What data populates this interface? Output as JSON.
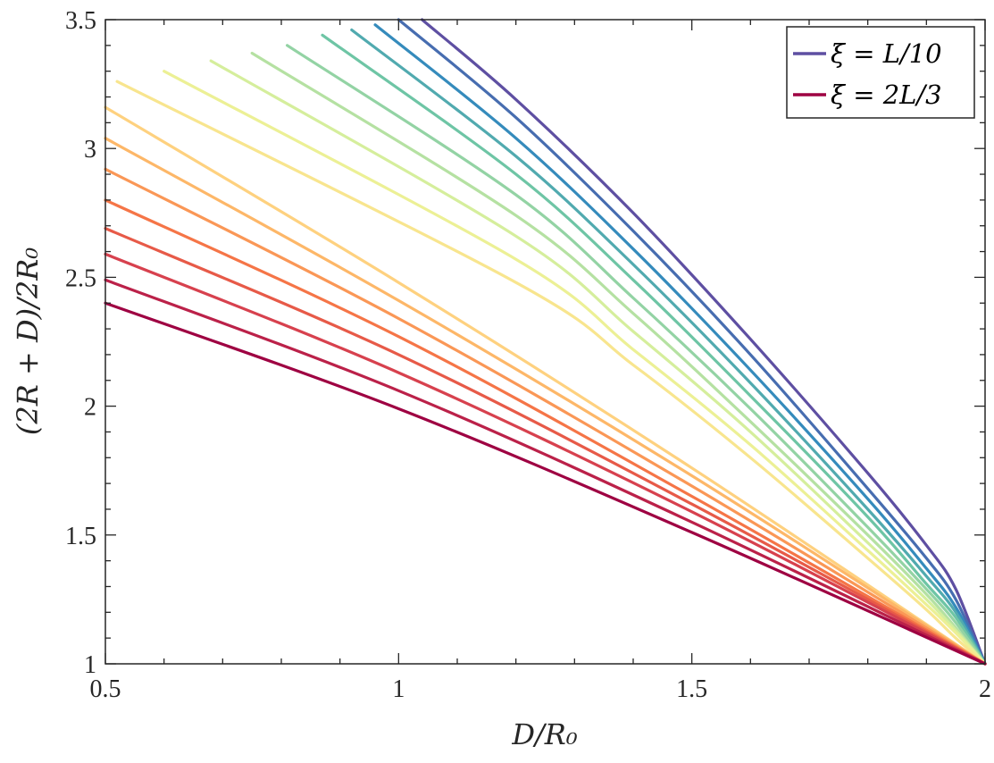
{
  "chart_data": {
    "type": "line",
    "xlabel": "D/R₀",
    "ylabel": "(2R + D)/2R₀",
    "xlim": [
      0.5,
      2
    ],
    "ylim": [
      1,
      3.5
    ],
    "xticks": [
      {
        "value": 0.5,
        "label": "0.5"
      },
      {
        "value": 1,
        "label": "1"
      },
      {
        "value": 1.5,
        "label": "1.5"
      },
      {
        "value": 2,
        "label": "2"
      }
    ],
    "yticks": [
      {
        "value": 1,
        "label": "1"
      },
      {
        "value": 1.5,
        "label": "1.5"
      },
      {
        "value": 2,
        "label": "2"
      },
      {
        "value": 2.5,
        "label": "2.5"
      },
      {
        "value": 3,
        "label": "3"
      },
      {
        "value": 3.5,
        "label": "3.5"
      }
    ],
    "grid": false,
    "legend_position": "top-right",
    "legend": [
      {
        "label": "ξ = L/10",
        "color": "#5e4fa2"
      },
      {
        "label": "ξ = 2L/3",
        "color": "#9e0142"
      }
    ],
    "colormap": [
      "#5e4fa2",
      "#3288bd",
      "#66c2a5",
      "#abdda4",
      "#e6f598",
      "#fee08b",
      "#fdae61",
      "#f46d43",
      "#d53e4f",
      "#9e0142"
    ],
    "series": [
      {
        "x": [
          1.04,
          1.2,
          1.4,
          1.6,
          1.8,
          1.9,
          1.95,
          2.0
        ],
        "y": [
          3.5,
          3.19,
          2.75,
          2.26,
          1.74,
          1.46,
          1.29,
          1.0
        ]
      },
      {
        "x": [
          1.0,
          1.2,
          1.4,
          1.6,
          1.8,
          1.9,
          1.95,
          2.0
        ],
        "y": [
          3.5,
          3.12,
          2.68,
          2.2,
          1.68,
          1.41,
          1.25,
          1.0
        ]
      },
      {
        "x": [
          0.96,
          1.2,
          1.4,
          1.6,
          1.8,
          1.9,
          1.95,
          2.0
        ],
        "y": [
          3.48,
          3.04,
          2.61,
          2.14,
          1.64,
          1.37,
          1.22,
          1.0
        ]
      },
      {
        "x": [
          0.92,
          1.2,
          1.4,
          1.6,
          1.8,
          1.9,
          1.95,
          2.0
        ],
        "y": [
          3.46,
          2.97,
          2.55,
          2.09,
          1.6,
          1.34,
          1.2,
          1.0
        ]
      },
      {
        "x": [
          0.87,
          1.2,
          1.4,
          1.6,
          1.8,
          1.9,
          1.95,
          2.0
        ],
        "y": [
          3.44,
          2.9,
          2.49,
          2.04,
          1.57,
          1.31,
          1.18,
          1.0
        ]
      },
      {
        "x": [
          0.81,
          1.2,
          1.4,
          1.6,
          1.8,
          1.9,
          1.95,
          2.0
        ],
        "y": [
          3.4,
          2.82,
          2.42,
          1.99,
          1.53,
          1.29,
          1.16,
          1.0
        ]
      },
      {
        "x": [
          0.75,
          1.2,
          1.4,
          1.6,
          1.8,
          1.9,
          1.95,
          2.0
        ],
        "y": [
          3.37,
          2.74,
          2.36,
          1.94,
          1.5,
          1.27,
          1.14,
          1.0
        ]
      },
      {
        "x": [
          0.68,
          1.2,
          1.4,
          1.6,
          1.8,
          1.9,
          1.95,
          2.0
        ],
        "y": [
          3.34,
          2.66,
          2.29,
          1.9,
          1.47,
          1.25,
          1.13,
          1.0
        ]
      },
      {
        "x": [
          0.6,
          1.2,
          1.4,
          1.6,
          1.8,
          1.9,
          1.95,
          2.0
        ],
        "y": [
          3.3,
          2.57,
          2.22,
          1.85,
          1.44,
          1.23,
          1.12,
          1.0
        ]
      },
      {
        "x": [
          0.52,
          1.2,
          1.4,
          1.6,
          1.8,
          1.9,
          1.95,
          2.0
        ],
        "y": [
          3.26,
          2.48,
          2.16,
          1.8,
          1.41,
          1.21,
          1.1,
          1.0
        ]
      },
      {
        "x": [
          0.5,
          1.0,
          1.5,
          2.0
        ],
        "y": [
          3.16,
          2.48,
          1.76,
          1.0
        ]
      },
      {
        "x": [
          0.5,
          1.0,
          1.5,
          2.0
        ],
        "y": [
          3.04,
          2.41,
          1.73,
          1.0
        ]
      },
      {
        "x": [
          0.5,
          1.0,
          1.5,
          2.0
        ],
        "y": [
          2.92,
          2.34,
          1.69,
          1.0
        ]
      },
      {
        "x": [
          0.5,
          1.0,
          1.5,
          2.0
        ],
        "y": [
          2.8,
          2.27,
          1.65,
          1.0
        ]
      },
      {
        "x": [
          0.5,
          1.0,
          1.5,
          2.0
        ],
        "y": [
          2.69,
          2.2,
          1.62,
          1.0
        ]
      },
      {
        "x": [
          0.5,
          1.0,
          1.5,
          2.0
        ],
        "y": [
          2.59,
          2.13,
          1.59,
          1.0
        ]
      },
      {
        "x": [
          0.5,
          1.0,
          1.5,
          2.0
        ],
        "y": [
          2.49,
          2.06,
          1.55,
          1.0
        ]
      },
      {
        "x": [
          0.5,
          1.0,
          1.5,
          2.0
        ],
        "y": [
          2.4,
          1.99,
          1.51,
          1.0
        ]
      }
    ]
  }
}
